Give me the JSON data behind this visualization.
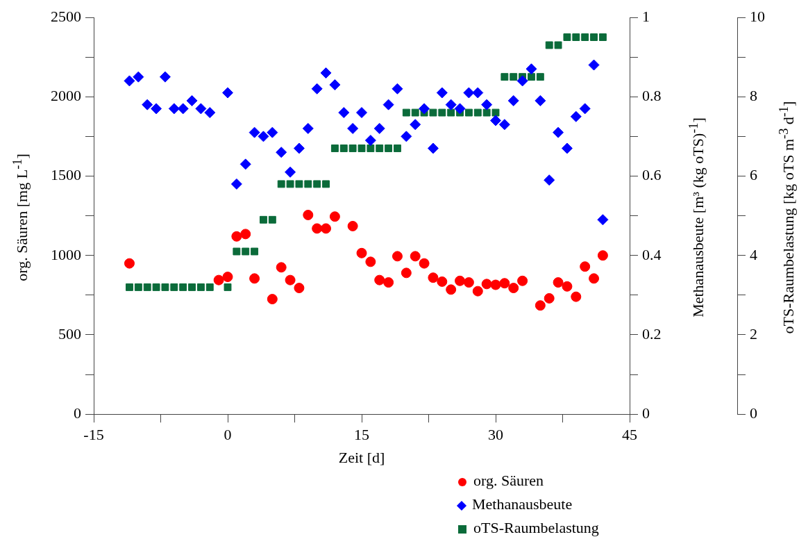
{
  "chart_data": {
    "type": "scatter",
    "xlabel": "Zeit [d]",
    "ylabel": "org. Säuren [mg L$^{-1}$]",
    "y2label": "Methanausbeute [m³ (kg oTS)$^{-1}$]",
    "y3label": "oTS-Raumbelastung [kg oTS m$^{-3}$ d$^{-1}$]",
    "legend": "bottom",
    "grid": false,
    "xlim": [
      -15,
      45
    ],
    "xticks": [
      -15,
      {
        "value": -7.5,
        "label": null
      },
      0,
      {
        "value": 7.5,
        "label": null
      },
      15,
      {
        "value": 22.5,
        "label": null
      },
      30,
      {
        "value": 37.5,
        "label": null
      },
      45
    ],
    "ylim": [
      0,
      2500
    ],
    "yticks": [
      0,
      {
        "value": 250,
        "label": null
      },
      500,
      {
        "value": 750,
        "label": null
      },
      1000,
      {
        "value": 1250,
        "label": null
      },
      1500,
      {
        "value": 1750,
        "label": null
      },
      2000,
      {
        "value": 2250,
        "label": null
      },
      2500
    ],
    "y2lim": [
      0,
      1
    ],
    "y2ticks": [
      0,
      {
        "value": 0.1,
        "label": null
      },
      0.2,
      {
        "value": 0.3,
        "label": null
      },
      0.4,
      {
        "value": 0.5,
        "label": null
      },
      0.6,
      {
        "value": 0.7,
        "label": null
      },
      0.8,
      {
        "value": 0.9,
        "label": null
      },
      1
    ],
    "y3lim": [
      0,
      10
    ],
    "y3ticks": [
      0,
      {
        "value": 1,
        "label": null
      },
      2,
      {
        "value": 3,
        "label": null
      },
      4,
      {
        "value": 5,
        "label": null
      },
      6,
      {
        "value": 7,
        "label": null
      },
      8,
      {
        "value": 9,
        "label": null
      },
      10
    ],
    "series": [
      {
        "name": "org. Säuren",
        "color": "#ff0000",
        "marker": "circle",
        "x": [
          -11,
          -1,
          0,
          1,
          2,
          3,
          5,
          6,
          7,
          8,
          9,
          10,
          11,
          12,
          14,
          15,
          16,
          17,
          18,
          19,
          20,
          21,
          22,
          23,
          24,
          25,
          26,
          27,
          28,
          29,
          30,
          31,
          32,
          33,
          35,
          36,
          37,
          38,
          39,
          40,
          41,
          42
        ],
        "values": [
          950,
          845,
          865,
          1120,
          1135,
          855,
          725,
          925,
          845,
          795,
          1255,
          1170,
          1170,
          1245,
          1185,
          1015,
          960,
          845,
          830,
          995,
          890,
          995,
          950,
          860,
          835,
          785,
          840,
          830,
          775,
          820,
          815,
          825,
          795,
          840,
          685,
          730,
          830,
          805,
          740,
          930,
          855,
          1000
        ]
      },
      {
        "name": "Methanausbeute",
        "color": "#0000ff",
        "marker": "diamond",
        "axis": "y2",
        "x": [
          -11,
          -10,
          -9,
          -8,
          -7,
          -6,
          -5,
          -4,
          -3,
          -2,
          0,
          1,
          2,
          3,
          4,
          5,
          6,
          7,
          8,
          9,
          10,
          11,
          12,
          13,
          14,
          15,
          16,
          17,
          18,
          19,
          20,
          21,
          22,
          23,
          24,
          25,
          26,
          27,
          28,
          29,
          30,
          31,
          32,
          33,
          34,
          35,
          36,
          37,
          38,
          39,
          40,
          41,
          42
        ],
        "values": [
          0.84,
          0.85,
          0.78,
          0.77,
          0.85,
          0.77,
          0.77,
          0.79,
          0.77,
          0.76,
          0.81,
          0.58,
          0.63,
          0.71,
          0.7,
          0.71,
          0.66,
          0.61,
          0.67,
          0.72,
          0.82,
          0.86,
          0.83,
          0.76,
          0.72,
          0.76,
          0.69,
          0.72,
          0.78,
          0.82,
          0.7,
          0.73,
          0.77,
          0.67,
          0.81,
          0.78,
          0.77,
          0.81,
          0.81,
          0.78,
          0.74,
          0.73,
          0.79,
          0.84,
          0.87,
          0.79,
          0.59,
          0.71,
          0.67,
          0.75,
          0.77,
          0.88,
          0.49
        ]
      },
      {
        "name": "oTS-Raumbelastung",
        "color": "#0b6b3a",
        "marker": "square",
        "axis": "y3",
        "x": [
          -11,
          -10,
          -9,
          -8,
          -7,
          -6,
          -5,
          -4,
          -3,
          -2,
          0,
          1,
          2,
          3,
          4,
          5,
          6,
          7,
          8,
          9,
          10,
          11,
          12,
          13,
          14,
          15,
          16,
          17,
          18,
          19,
          20,
          21,
          22,
          23,
          24,
          25,
          26,
          27,
          28,
          29,
          30,
          31,
          32,
          33,
          34,
          35,
          36,
          37,
          38,
          39,
          40,
          41,
          42
        ],
        "values": [
          3.2,
          3.2,
          3.2,
          3.2,
          3.2,
          3.2,
          3.2,
          3.2,
          3.2,
          3.2,
          3.2,
          4.1,
          4.1,
          4.1,
          4.9,
          4.9,
          5.8,
          5.8,
          5.8,
          5.8,
          5.8,
          5.8,
          6.7,
          6.7,
          6.7,
          6.7,
          6.7,
          6.7,
          6.7,
          6.7,
          7.6,
          7.6,
          7.6,
          7.6,
          7.6,
          7.6,
          7.6,
          7.6,
          7.6,
          7.6,
          7.6,
          8.5,
          8.5,
          8.5,
          8.5,
          8.5,
          9.3,
          9.3,
          9.5,
          9.5,
          9.5,
          9.5,
          9.5
        ]
      }
    ]
  }
}
